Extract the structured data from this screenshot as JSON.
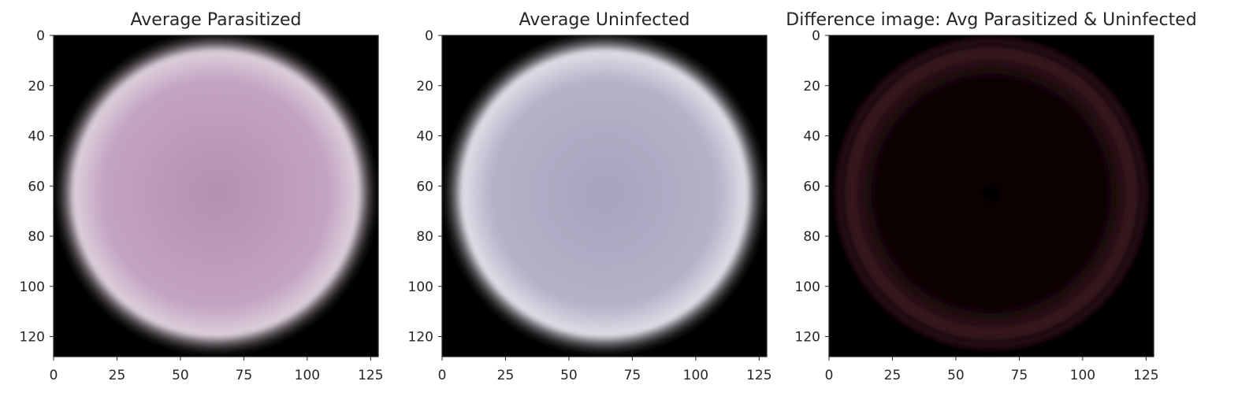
{
  "chart_data": [
    {
      "type": "image",
      "title": "Average Parasitized",
      "xlabel": "",
      "ylabel": "",
      "xlim": [
        0,
        128
      ],
      "ylim": [
        128,
        0
      ],
      "xticks": [
        0,
        25,
        50,
        75,
        100,
        125
      ],
      "yticks": [
        0,
        20,
        40,
        60,
        80,
        100,
        120
      ],
      "grid": false,
      "content": "circular cell, pink",
      "colors": {
        "cell_center": "#b48fb2",
        "cell_mid": "#c3a3c2",
        "cell_rim": "#dcd0da",
        "background": "#000000"
      }
    },
    {
      "type": "image",
      "title": "Average Uninfected",
      "xlabel": "",
      "ylabel": "",
      "xlim": [
        0,
        128
      ],
      "ylim": [
        128,
        0
      ],
      "xticks": [
        0,
        25,
        50,
        75,
        100,
        125
      ],
      "yticks": [
        0,
        20,
        40,
        60,
        80,
        100,
        120
      ],
      "grid": false,
      "content": "circular cell, lavender grey",
      "colors": {
        "cell_center": "#a7a3bd",
        "cell_mid": "#b5b1c8",
        "cell_rim": "#e0dee6",
        "background": "#000000"
      }
    },
    {
      "type": "image",
      "title": "Difference image: Avg Parasitized & Uninfected",
      "xlabel": "",
      "ylabel": "",
      "xlim": [
        0,
        128
      ],
      "ylim": [
        128,
        0
      ],
      "xticks": [
        0,
        25,
        50,
        75,
        100,
        125
      ],
      "yticks": [
        0,
        20,
        40,
        60,
        80,
        100,
        120
      ],
      "grid": false,
      "content": "near-black, faint dark red ring",
      "colors": {
        "cell_center": "#060000",
        "cell_mid": "#0c0103",
        "cell_rim": "#3a1820",
        "background": "#000000"
      }
    }
  ]
}
